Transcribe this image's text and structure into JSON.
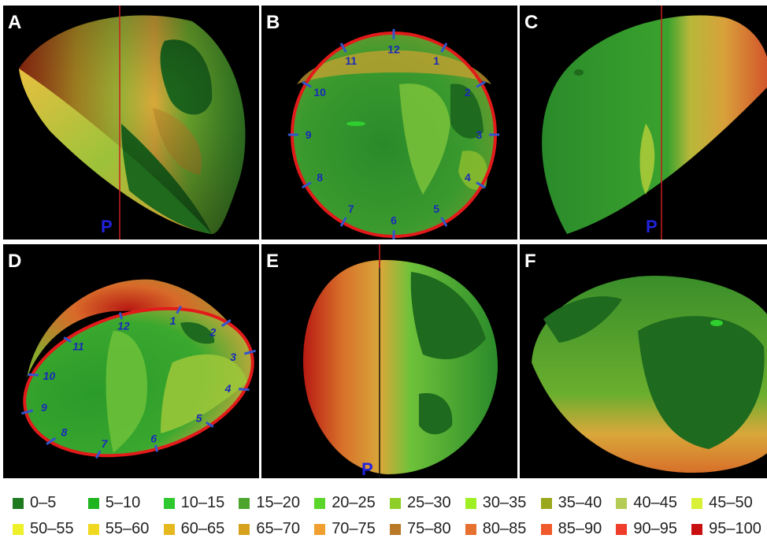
{
  "panels": [
    {
      "letter": "A",
      "p_label": "P"
    },
    {
      "letter": "B",
      "clock": [
        "12",
        "1",
        "2",
        "3",
        "4",
        "5",
        "6",
        "7",
        "8",
        "9",
        "10",
        "11"
      ]
    },
    {
      "letter": "C",
      "p_label": "P"
    },
    {
      "letter": "D",
      "clock": [
        "12",
        "1",
        "2",
        "3",
        "4",
        "5",
        "6",
        "7",
        "8",
        "9",
        "10",
        "11"
      ]
    },
    {
      "letter": "E",
      "p_label": "P"
    },
    {
      "letter": "F"
    }
  ],
  "legend": [
    {
      "label": "0–5",
      "color": "#1e7a1e"
    },
    {
      "label": "5–10",
      "color": "#1fb51f"
    },
    {
      "label": "10–15",
      "color": "#2fc82f"
    },
    {
      "label": "15–20",
      "color": "#4ea52e"
    },
    {
      "label": "20–25",
      "color": "#5ad62a"
    },
    {
      "label": "25–30",
      "color": "#8fce28"
    },
    {
      "label": "30–35",
      "color": "#9ef024"
    },
    {
      "label": "35–40",
      "color": "#9aa81e"
    },
    {
      "label": "40–45",
      "color": "#b4cc55"
    },
    {
      "label": "45–50",
      "color": "#d8f035"
    },
    {
      "label": "50–55",
      "color": "#eef02a"
    },
    {
      "label": "55–60",
      "color": "#f0d820"
    },
    {
      "label": "60–65",
      "color": "#e6b820"
    },
    {
      "label": "65–70",
      "color": "#d6a21e"
    },
    {
      "label": "70–75",
      "color": "#f0a030"
    },
    {
      "label": "75–80",
      "color": "#b87a28"
    },
    {
      "label": "80–85",
      "color": "#e67030"
    },
    {
      "label": "85–90",
      "color": "#f05a2a"
    },
    {
      "label": "90–95",
      "color": "#f03c2a"
    },
    {
      "label": "95–100",
      "color": "#c81010"
    }
  ]
}
